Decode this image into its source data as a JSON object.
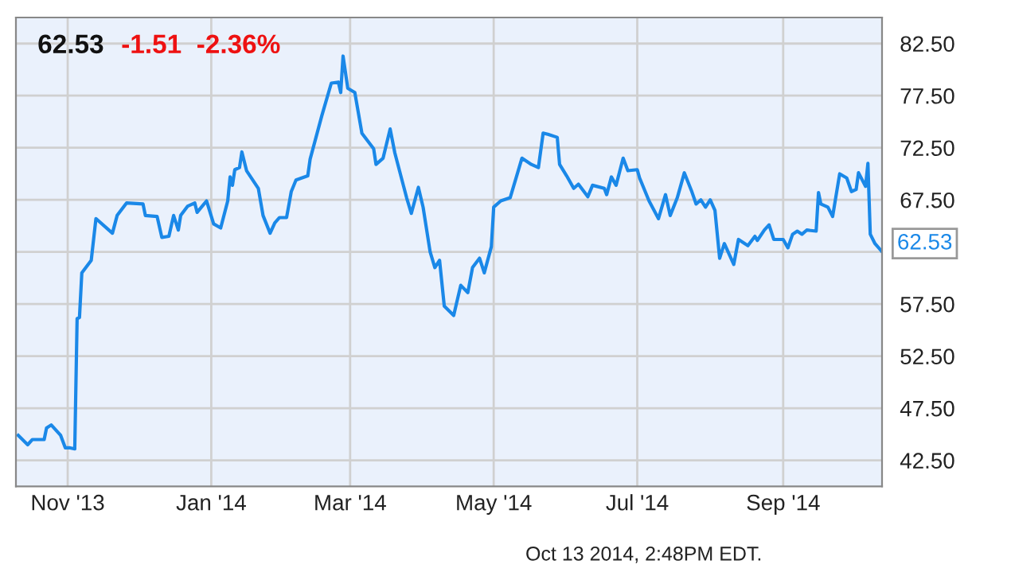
{
  "chart_data": {
    "type": "line",
    "title": "62.53",
    "subtitle": "-1.51  -2.36%",
    "annotations": [
      "Oct 13 2014, 2:48PM EDT."
    ],
    "x": [
      "2013-10-11",
      "2013-10-15",
      "2013-10-17",
      "2013-10-22",
      "2013-10-23",
      "2013-10-25",
      "2013-10-29",
      "2013-10-31",
      "2013-11-02",
      "2013-11-04",
      "2013-11-05",
      "2013-11-06",
      "2013-11-07",
      "2013-11-11",
      "2013-11-13",
      "2013-11-18",
      "2013-11-20",
      "2013-11-22",
      "2013-11-26",
      "2013-12-03",
      "2013-12-04",
      "2013-12-09",
      "2013-12-11",
      "2013-12-14",
      "2013-12-16",
      "2013-12-18",
      "2013-12-19",
      "2013-12-22",
      "2013-12-25",
      "2013-12-26",
      "2013-12-30",
      "2014-01-02",
      "2014-01-05",
      "2014-01-08",
      "2014-01-09",
      "2014-01-10",
      "2014-01-11",
      "2014-01-13",
      "2014-01-14",
      "2014-01-16",
      "2014-01-21",
      "2014-01-23",
      "2014-01-26",
      "2014-01-28",
      "2014-01-30",
      "2014-02-02",
      "2014-02-04",
      "2014-02-06",
      "2014-02-11",
      "2014-02-12",
      "2014-02-17",
      "2014-02-21",
      "2014-02-24",
      "2014-02-25",
      "2014-02-26",
      "2014-02-28",
      "2014-03-03",
      "2014-03-06",
      "2014-03-11",
      "2014-03-12",
      "2014-03-15",
      "2014-03-18",
      "2014-03-20",
      "2014-03-25",
      "2014-03-27",
      "2014-03-30",
      "2014-04-01",
      "2014-04-04",
      "2014-04-06",
      "2014-04-08",
      "2014-04-10",
      "2014-04-14",
      "2014-04-17",
      "2014-04-20",
      "2014-04-22",
      "2014-04-25",
      "2014-04-27",
      "2014-04-30",
      "2014-05-01",
      "2014-05-04",
      "2014-05-08",
      "2014-05-13",
      "2014-05-17",
      "2014-05-20",
      "2014-05-22",
      "2014-05-24",
      "2014-05-28",
      "2014-05-29",
      "2014-06-01",
      "2014-06-04",
      "2014-06-06",
      "2014-06-10",
      "2014-06-12",
      "2014-06-17",
      "2014-06-18",
      "2014-06-20",
      "2014-06-22",
      "2014-06-25",
      "2014-06-27",
      "2014-07-01",
      "2014-07-02",
      "2014-07-06",
      "2014-07-10",
      "2014-07-13",
      "2014-07-15",
      "2014-07-18",
      "2014-07-21",
      "2014-07-24",
      "2014-07-26",
      "2014-07-28",
      "2014-07-30",
      "2014-08-01",
      "2014-08-03",
      "2014-08-05",
      "2014-08-07",
      "2014-08-11",
      "2014-08-13",
      "2014-08-17",
      "2014-08-20",
      "2014-08-21",
      "2014-08-24",
      "2014-08-26",
      "2014-08-28",
      "2014-09-01",
      "2014-09-03",
      "2014-09-05",
      "2014-09-07",
      "2014-09-09",
      "2014-09-11",
      "2014-09-15",
      "2014-09-16",
      "2014-09-17",
      "2014-09-20",
      "2014-09-22",
      "2014-09-25",
      "2014-09-28",
      "2014-09-30",
      "2014-10-02",
      "2014-10-03",
      "2014-10-06",
      "2014-10-07",
      "2014-10-08",
      "2014-10-10",
      "2014-10-13"
    ],
    "series": [
      {
        "color": "#1a88e8",
        "values": [
          44.9,
          44.0,
          44.5,
          44.5,
          45.6,
          45.9,
          44.9,
          43.7,
          43.7,
          43.6,
          56.1,
          56.2,
          60.5,
          61.7,
          65.7,
          64.7,
          64.3,
          66.0,
          67.2,
          67.1,
          66.0,
          65.9,
          63.9,
          64.0,
          66.0,
          64.6,
          66.0,
          66.9,
          67.2,
          66.3,
          67.4,
          65.2,
          64.8,
          67.4,
          69.7,
          68.9,
          70.4,
          70.6,
          72.1,
          70.3,
          68.6,
          66.0,
          64.3,
          65.3,
          65.8,
          65.8,
          68.3,
          69.4,
          69.8,
          71.4,
          75.6,
          78.7,
          78.8,
          77.8,
          81.3,
          78.2,
          77.8,
          73.9,
          72.4,
          70.9,
          71.5,
          74.3,
          72.0,
          67.7,
          66.2,
          68.7,
          66.8,
          62.5,
          61.0,
          61.7,
          57.3,
          56.4,
          59.3,
          58.6,
          61.0,
          61.9,
          60.5,
          63.0,
          66.8,
          67.4,
          67.7,
          71.5,
          70.9,
          70.6,
          73.9,
          73.8,
          73.5,
          70.9,
          69.8,
          68.6,
          69.0,
          67.8,
          68.9,
          68.6,
          68.0,
          69.7,
          68.9,
          71.5,
          70.3,
          70.4,
          69.6,
          67.4,
          65.7,
          68.0,
          66.0,
          67.7,
          70.1,
          68.4,
          67.1,
          67.5,
          66.8,
          67.5,
          66.5,
          61.9,
          63.3,
          61.3,
          63.7,
          63.1,
          64.0,
          63.6,
          64.6,
          65.1,
          63.7,
          63.7,
          62.9,
          64.2,
          64.5,
          64.2,
          64.6,
          64.5,
          68.2,
          67.1,
          66.8,
          65.9,
          70.0,
          69.6,
          68.3,
          68.5,
          70.1,
          68.8,
          71.0,
          64.2,
          63.3,
          62.53
        ]
      }
    ],
    "value_labels": [
      null,
      null,
      null,
      null,
      null,
      null,
      null,
      null,
      null,
      null,
      null,
      null,
      null,
      null,
      null,
      null,
      null,
      null,
      null,
      null,
      null,
      null,
      null,
      null,
      null,
      null,
      null,
      null,
      null,
      null,
      null,
      null,
      null,
      null,
      null,
      null,
      null,
      null,
      null,
      null,
      null,
      null,
      null,
      null,
      null,
      null,
      null,
      null,
      null,
      null,
      null,
      null,
      null,
      null,
      null,
      null,
      null,
      null,
      null,
      null,
      null,
      null,
      null,
      null,
      null,
      null,
      null,
      null,
      null,
      null,
      null,
      null,
      null,
      null,
      null,
      null,
      null,
      null,
      null,
      null,
      null,
      null,
      null,
      null,
      null,
      null,
      null,
      null,
      null,
      null,
      null,
      null,
      null,
      null,
      null,
      null,
      null,
      null,
      null,
      null,
      null,
      null,
      null,
      null,
      null,
      null,
      null,
      null,
      null,
      null,
      null,
      null,
      null,
      null,
      null,
      null,
      null,
      null,
      null,
      null,
      null,
      null,
      null,
      null,
      null,
      null,
      null,
      null,
      null,
      null,
      null,
      null,
      null,
      null,
      null,
      null,
      null,
      null,
      null,
      null,
      null,
      null,
      "62.53"
    ],
    "xlim": [
      "2013-10-10",
      "2014-10-13"
    ],
    "xticks": [
      {
        "value": "2013-11-01",
        "label": "Nov '13"
      },
      {
        "value": "2014-01-01",
        "label": "Jan '14"
      },
      {
        "value": "2014-03-01",
        "label": "Mar '14"
      },
      {
        "value": "2014-05-01",
        "label": "May '14"
      },
      {
        "value": "2014-07-01",
        "label": "Jul '14"
      },
      {
        "value": "2014-09-01",
        "label": "Sep '14"
      }
    ],
    "ylim": [
      40,
      85
    ],
    "yticks": [
      {
        "value": 42.5,
        "label": "42.50"
      },
      {
        "value": 47.5,
        "label": "47.50"
      },
      {
        "value": 52.5,
        "label": "52.50"
      },
      {
        "value": 57.5,
        "label": "57.50"
      },
      {
        "value": 62.5,
        "label": null
      },
      {
        "value": 67.5,
        "label": "67.50"
      },
      {
        "value": 72.5,
        "label": "72.50"
      },
      {
        "value": 77.5,
        "label": "77.50"
      },
      {
        "value": 82.5,
        "label": "82.50"
      }
    ],
    "grid": true,
    "legend": false,
    "marker": "none",
    "line_style": "solid"
  }
}
